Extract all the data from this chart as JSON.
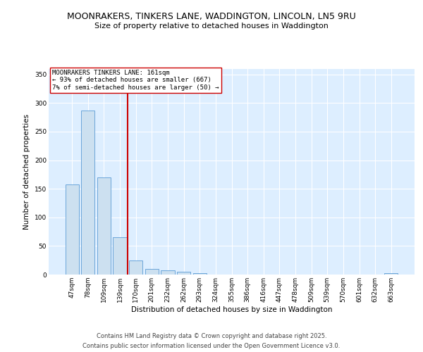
{
  "title": "MOONRAKERS, TINKERS LANE, WADDINGTON, LINCOLN, LN5 9RU",
  "subtitle": "Size of property relative to detached houses in Waddington",
  "xlabel": "Distribution of detached houses by size in Waddington",
  "ylabel": "Number of detached properties",
  "categories": [
    "47sqm",
    "78sqm",
    "109sqm",
    "139sqm",
    "170sqm",
    "201sqm",
    "232sqm",
    "262sqm",
    "293sqm",
    "324sqm",
    "355sqm",
    "386sqm",
    "416sqm",
    "447sqm",
    "478sqm",
    "509sqm",
    "539sqm",
    "570sqm",
    "601sqm",
    "632sqm",
    "663sqm"
  ],
  "values": [
    157,
    287,
    170,
    65,
    25,
    10,
    7,
    5,
    3,
    0,
    0,
    0,
    0,
    0,
    0,
    0,
    0,
    0,
    0,
    0,
    3
  ],
  "bar_color": "#cce0f0",
  "bar_edge_color": "#5b9bd5",
  "vline_x": 3.5,
  "vline_color": "#cc0000",
  "annotation_line1": "MOONRAKERS TINKERS LANE: 161sqm",
  "annotation_line2": "← 93% of detached houses are smaller (667)",
  "annotation_line3": "7% of semi-detached houses are larger (50) →",
  "annotation_box_color": "#ffffff",
  "annotation_box_edge": "#cc0000",
  "ylim": [
    0,
    360
  ],
  "yticks": [
    0,
    50,
    100,
    150,
    200,
    250,
    300,
    350
  ],
  "footer_line1": "Contains HM Land Registry data © Crown copyright and database right 2025.",
  "footer_line2": "Contains public sector information licensed under the Open Government Licence v3.0.",
  "bg_color": "#ddeeff",
  "fig_bg_color": "#ffffff",
  "title_fontsize": 9,
  "subtitle_fontsize": 8,
  "axis_label_fontsize": 7.5,
  "tick_fontsize": 6.5,
  "annotation_fontsize": 6.5,
  "footer_fontsize": 6
}
